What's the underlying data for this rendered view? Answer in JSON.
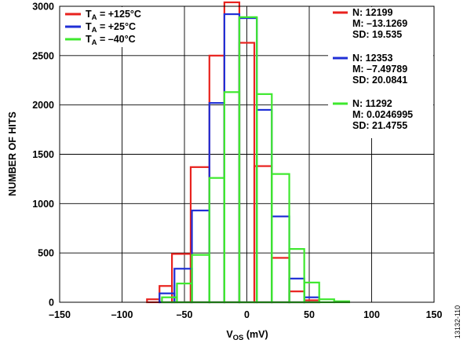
{
  "chart_data": {
    "type": "histogram",
    "xlabel_main": "V",
    "xlabel_sub": "OS",
    "xlabel_unit": " (mV)",
    "ylabel": "NUMBER OF HITS",
    "xlim": [
      -150,
      150
    ],
    "ylim": [
      0,
      3000
    ],
    "x_ticks": [
      -150,
      -100,
      -50,
      0,
      50,
      100,
      150
    ],
    "x_tick_labels": [
      "–150",
      "–100",
      "–50",
      "0",
      "50",
      "100",
      "150"
    ],
    "y_ticks": [
      0,
      500,
      1000,
      1500,
      2000,
      2500,
      3000
    ],
    "y_tick_labels": [
      "0",
      "500",
      "1000",
      "1500",
      "2000",
      "2500",
      "3000"
    ],
    "grid": true,
    "figure_id": "13132-110",
    "legend_left": [
      {
        "series": 0,
        "prefix": "T",
        "sub": "A",
        "text": " = +125°C"
      },
      {
        "series": 1,
        "prefix": "T",
        "sub": "A",
        "text": " = +25°C"
      },
      {
        "series": 2,
        "prefix": "T",
        "sub": "A",
        "text": " = –40°C"
      }
    ],
    "stats": [
      {
        "series": 0,
        "lines": [
          "N: 12199",
          "M: –13.1269",
          "SD: 19.535"
        ]
      },
      {
        "series": 1,
        "lines": [
          "N: 12353",
          "M: –7.49789",
          "SD: 20.0841"
        ]
      },
      {
        "series": 2,
        "lines": [
          "N: 11292",
          "M: 0.0246995",
          "SD: 21.4755"
        ]
      }
    ],
    "series": [
      {
        "color": "#e8221e",
        "bins": [
          {
            "x0": -80,
            "x1": -70,
            "y": 30
          },
          {
            "x0": -70,
            "x1": -60,
            "y": 165
          },
          {
            "x0": -60,
            "x1": -45,
            "y": 490
          },
          {
            "x0": -45,
            "x1": -30,
            "y": 1370
          },
          {
            "x0": -30,
            "x1": -18,
            "y": 2500
          },
          {
            "x0": -18,
            "x1": -6,
            "y": 3040
          },
          {
            "x0": -6,
            "x1": 6,
            "y": 2630
          },
          {
            "x0": 6,
            "x1": 20,
            "y": 1380
          },
          {
            "x0": 20,
            "x1": 34,
            "y": 450
          },
          {
            "x0": 34,
            "x1": 46,
            "y": 110
          },
          {
            "x0": 46,
            "x1": 58,
            "y": 20
          }
        ]
      },
      {
        "color": "#1f2fd6",
        "bins": [
          {
            "x0": -70,
            "x1": -58,
            "y": 90
          },
          {
            "x0": -58,
            "x1": -44,
            "y": 340
          },
          {
            "x0": -44,
            "x1": -30,
            "y": 930
          },
          {
            "x0": -30,
            "x1": -18,
            "y": 2020
          },
          {
            "x0": -18,
            "x1": -6,
            "y": 2920
          },
          {
            "x0": -6,
            "x1": 8,
            "y": 2880
          },
          {
            "x0": 8,
            "x1": 20,
            "y": 1950
          },
          {
            "x0": 20,
            "x1": 34,
            "y": 870
          },
          {
            "x0": 34,
            "x1": 46,
            "y": 240
          },
          {
            "x0": 46,
            "x1": 58,
            "y": 50
          }
        ]
      },
      {
        "color": "#3ee82e",
        "bins": [
          {
            "x0": -68,
            "x1": -56,
            "y": 50
          },
          {
            "x0": -56,
            "x1": -44,
            "y": 190
          },
          {
            "x0": -44,
            "x1": -30,
            "y": 480
          },
          {
            "x0": -30,
            "x1": -18,
            "y": 1260
          },
          {
            "x0": -18,
            "x1": -6,
            "y": 2130
          },
          {
            "x0": -6,
            "x1": 8,
            "y": 2890
          },
          {
            "x0": 8,
            "x1": 20,
            "y": 2110
          },
          {
            "x0": 20,
            "x1": 34,
            "y": 1300
          },
          {
            "x0": 34,
            "x1": 46,
            "y": 540
          },
          {
            "x0": 46,
            "x1": 58,
            "y": 200
          },
          {
            "x0": 58,
            "x1": 70,
            "y": 30
          },
          {
            "x0": 70,
            "x1": 82,
            "y": 10
          }
        ]
      }
    ]
  }
}
